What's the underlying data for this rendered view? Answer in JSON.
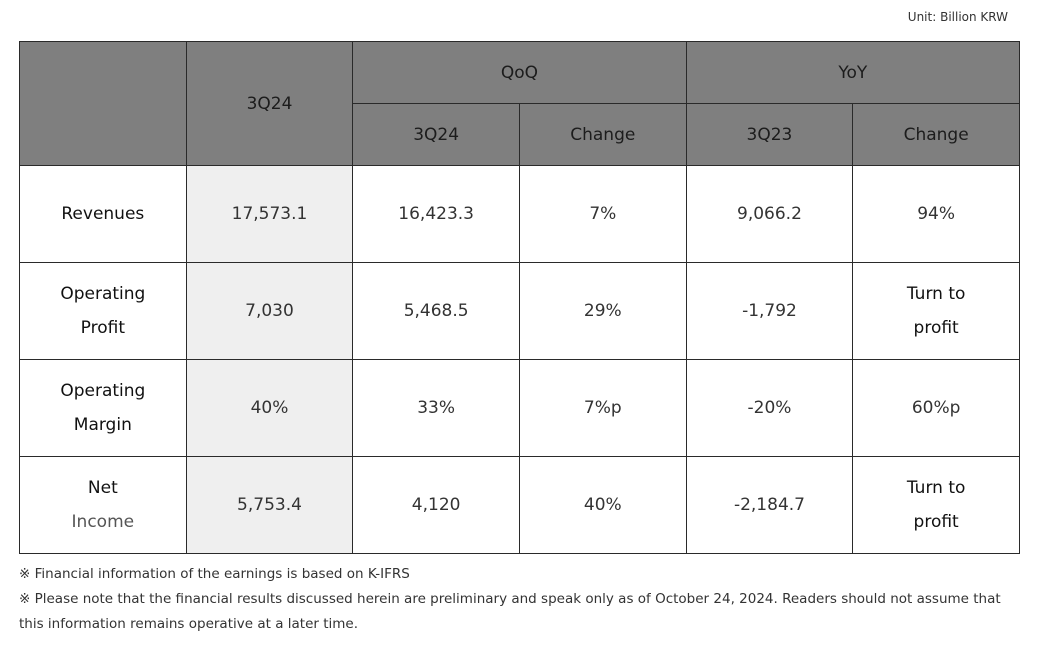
{
  "unit": "Unit: Billion KRW",
  "header": {
    "col_main": "3Q24",
    "group_qoq": "QoQ",
    "group_yoy": "YoY",
    "sub": [
      "3Q24",
      "Change",
      "3Q23",
      "Change"
    ]
  },
  "rows": [
    {
      "label1": "Revenues",
      "label2": "",
      "cur": "17,573.1",
      "qoq_prev": "16,423.3",
      "qoq_change": "7%",
      "yoy_prev": "9,066.2",
      "yoy_change1": "94%",
      "yoy_change2": ""
    },
    {
      "label1": "Operating",
      "label2": "Profit",
      "cur": "7,030",
      "qoq_prev": "5,468.5",
      "qoq_change": "29%",
      "yoy_prev": "-1,792",
      "yoy_change1": "Turn to",
      "yoy_change2": "profit"
    },
    {
      "label1": "Operating",
      "label2": "Margin",
      "cur": "40%",
      "qoq_prev": "33%",
      "qoq_change": "7%p",
      "yoy_prev": "-20%",
      "yoy_change1": "60%p",
      "yoy_change2": ""
    },
    {
      "label1": "Net",
      "label2": "Income",
      "cur": "5,753.4",
      "qoq_prev": "4,120",
      "qoq_change": "40%",
      "yoy_prev": "-2,184.7",
      "yoy_change1": "Turn to",
      "yoy_change2": "profit"
    }
  ],
  "notes": [
    "※ Financial information of the earnings is based on K-IFRS",
    "※ Please note that the financial results discussed herein are preliminary and speak only as of October 24, 2024. Readers should not assume that this information remains operative at a later time."
  ]
}
